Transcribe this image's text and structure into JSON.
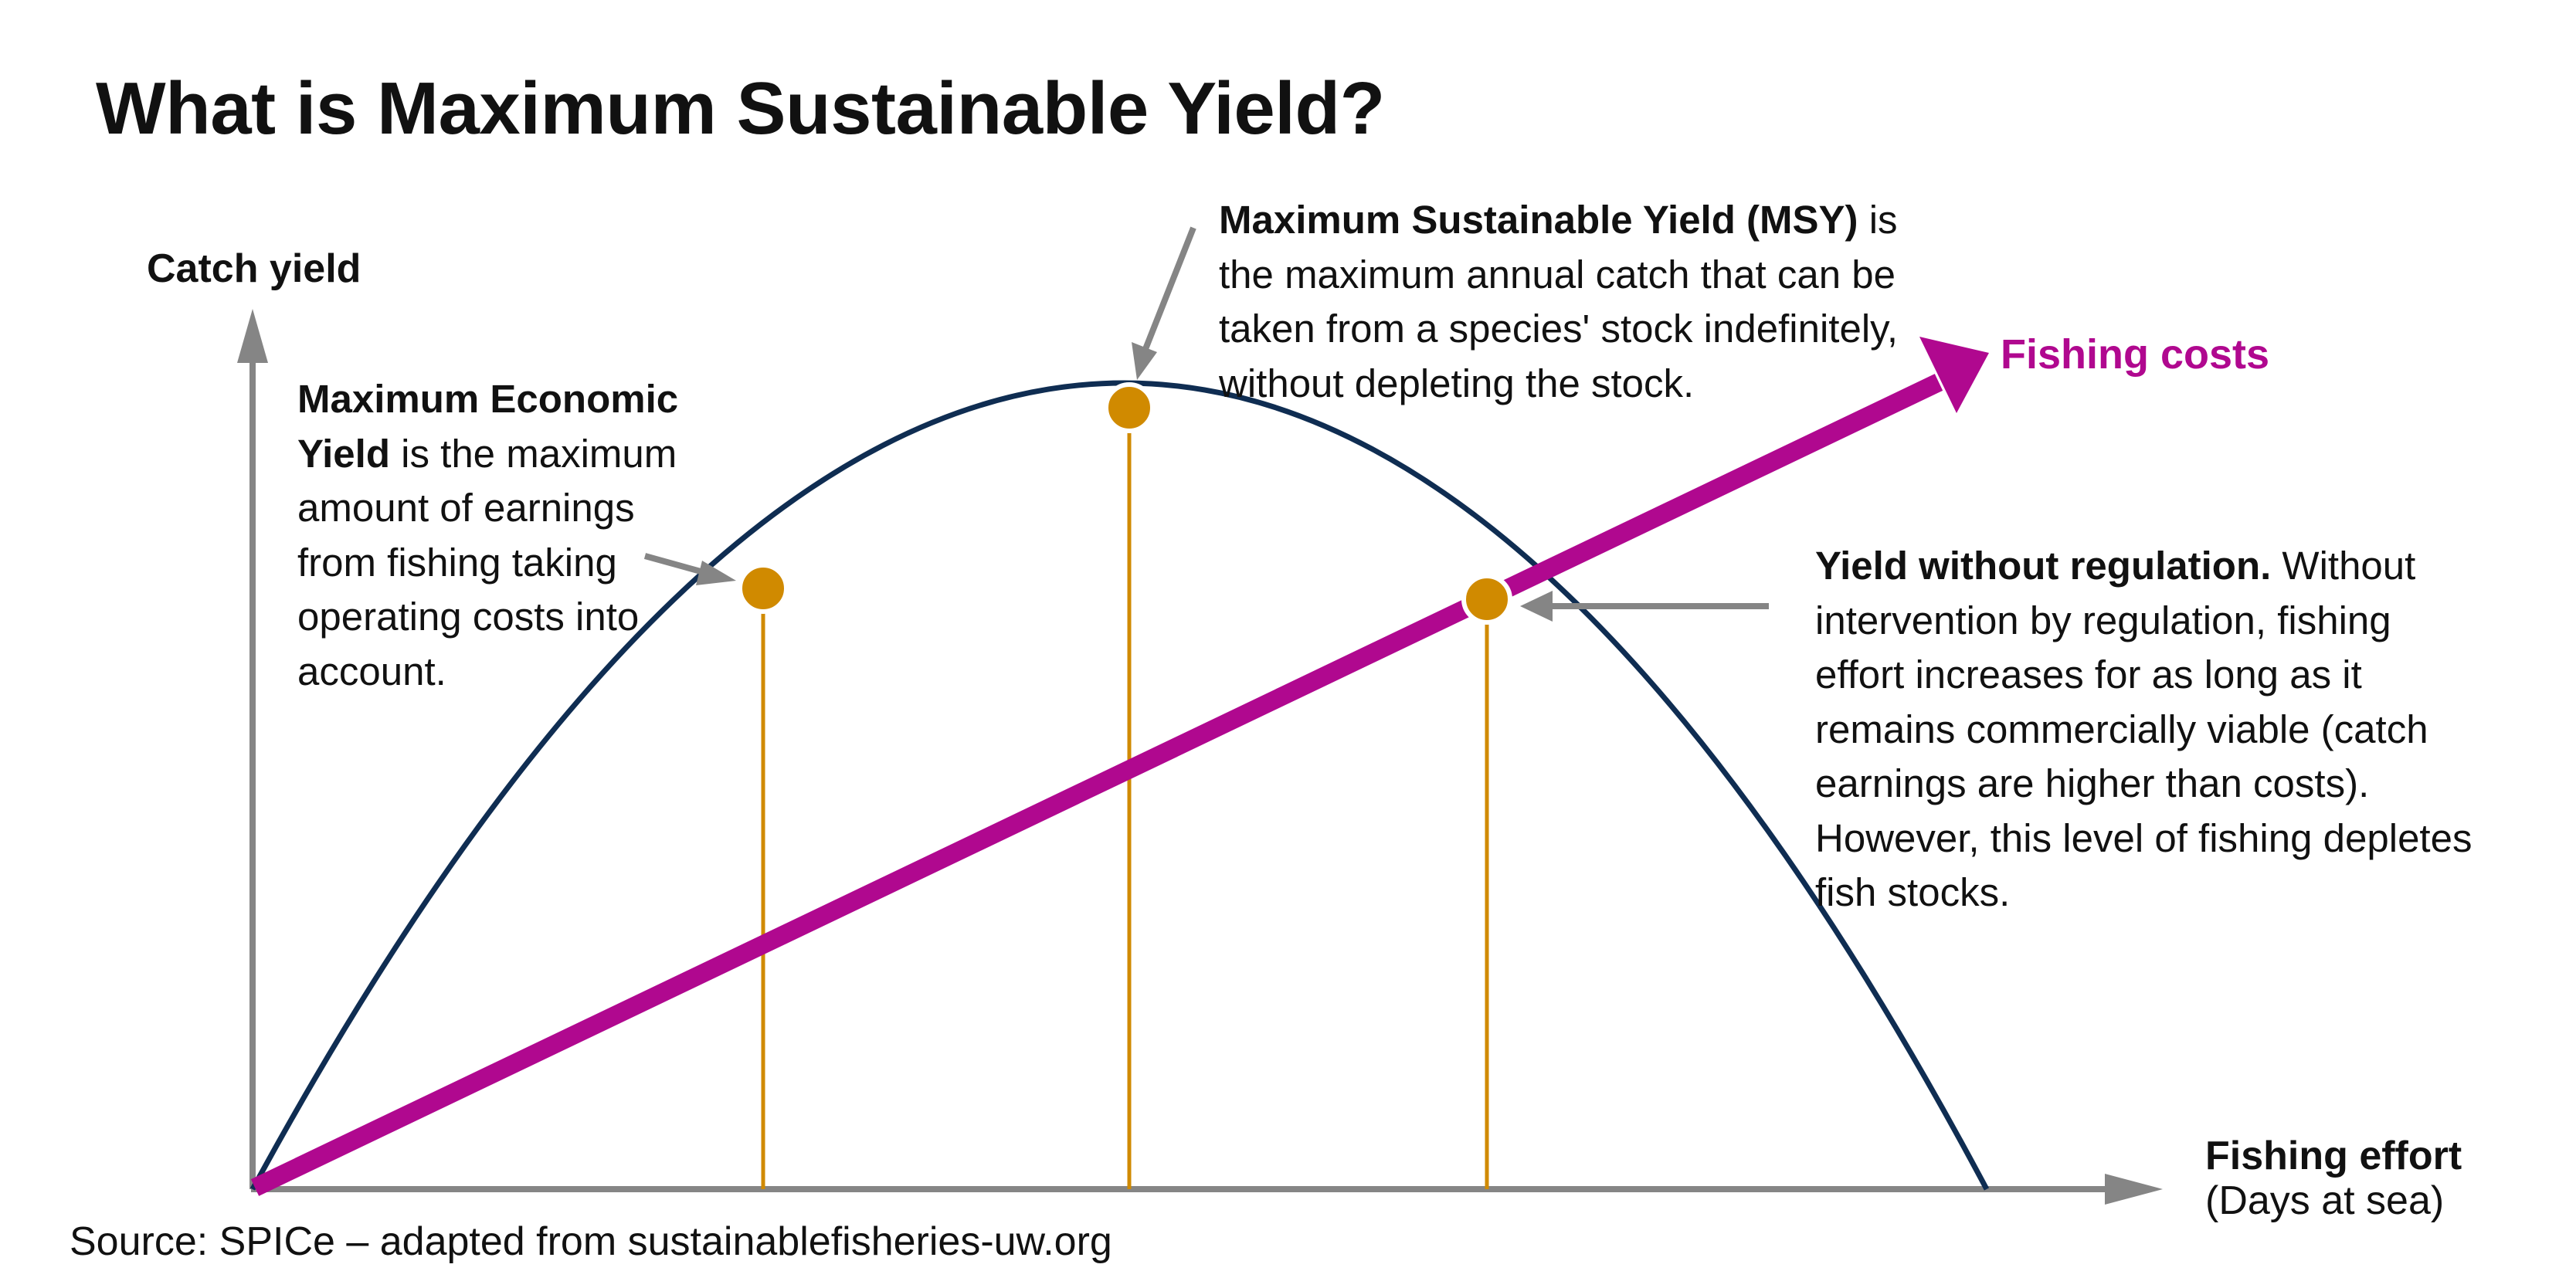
{
  "title": "What is Maximum Sustainable Yield?",
  "axes": {
    "y_label": "Catch yield",
    "x_label": "Fishing effort",
    "x_sublabel": "(Days at sea)"
  },
  "curves": {
    "fishing_costs_label": "Fishing costs"
  },
  "annotations": {
    "mey": {
      "bold": "Maximum Economic Yield",
      "text": " is the maximum amount of earnings from fishing taking operating costs into account."
    },
    "msy": {
      "bold": "Maximum Sustainable Yield (MSY)",
      "text": " is the maximum annual catch that can be taken from a species' stock indefinitely, without depleting the stock."
    },
    "unregulated": {
      "bold": "Yield without regulation.",
      "text": " Without intervention by regulation, fishing effort increases for as long as it remains commercially viable (catch earnings are higher than costs). However, this level of fishing depletes fish stocks."
    }
  },
  "source": "Source: SPICe – adapted from sustainablefisheries-uw.org",
  "colors": {
    "yield_curve": "#0f2d52",
    "cost_line": "#b0088f",
    "points": "#d08a00",
    "axes": "#858585",
    "pointer_arrows": "#858585",
    "text": "#111111"
  }
}
